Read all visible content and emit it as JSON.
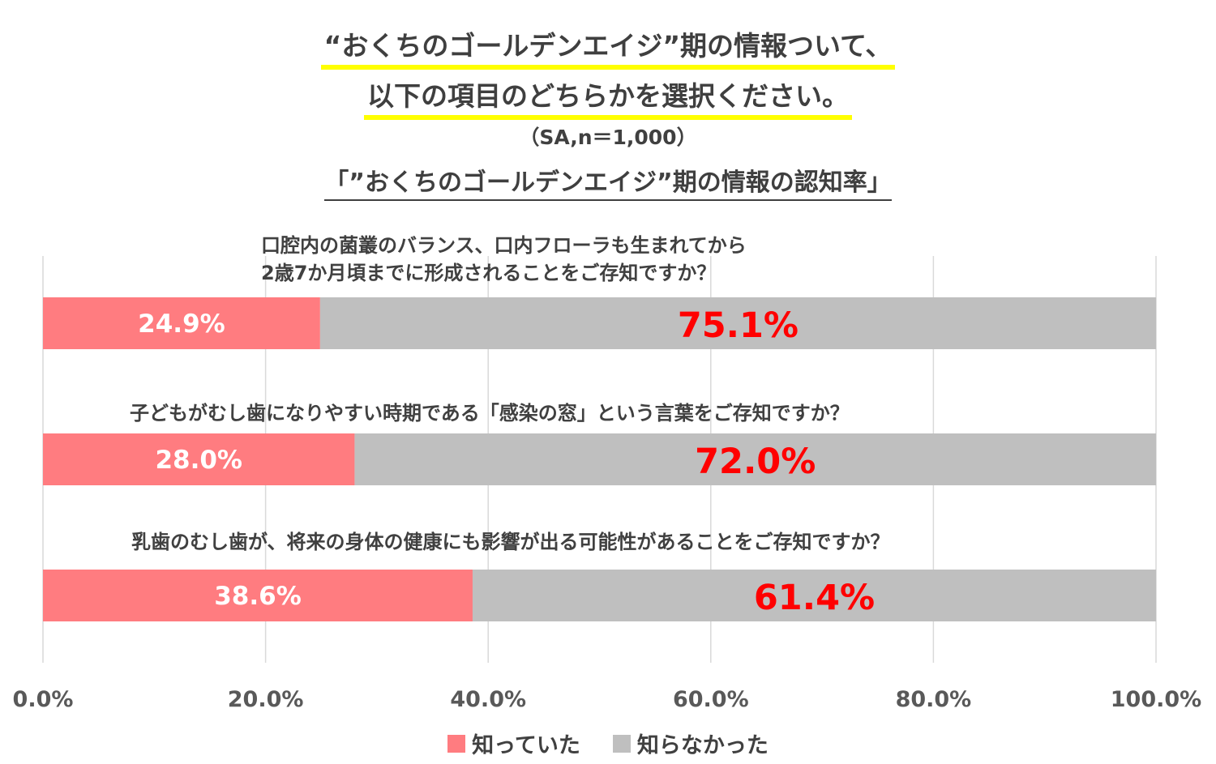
{
  "header": {
    "title_line1": "“おくちのゴールデンエイジ”期の情報ついて、",
    "title_line2": "以下の項目のどちらかを選択ください。",
    "sample_note": "（SA,n＝1,000）",
    "chart_title": "「”おくちのゴールデンエイジ”期の情報の認知率」"
  },
  "questions": [
    {
      "line1": "口腔内の菌叢のバランス、口内フローラも生まれてから",
      "line2": "2歳7か月頃までに形成されることをご存知ですか？"
    },
    {
      "line1": "子どもがむし歯になりやすい時期である「感染の窓」という言葉をご存知ですか？"
    },
    {
      "line1": "乳歯のむし歯が、将来の身体の健康にも影響が出る可能性があることをご存知ですか？"
    }
  ],
  "colors": {
    "known": "#ff7c80",
    "unknown": "#bfbfbf",
    "unknown_label": "#ff0000",
    "known_label": "#ffffff"
  },
  "chart_data": {
    "type": "bar",
    "orientation": "horizontal",
    "stacked": true,
    "categories": [
      "Q1",
      "Q2",
      "Q3"
    ],
    "series": [
      {
        "name": "知っていた",
        "values": [
          24.9,
          28.0,
          38.6
        ],
        "labels": [
          "24.9%",
          "28.0%",
          "38.6%"
        ]
      },
      {
        "name": "知らなかった",
        "values": [
          75.1,
          72.0,
          61.4
        ],
        "labels": [
          "75.1%",
          "72.0%",
          "61.4%"
        ]
      }
    ],
    "xlim": [
      0,
      100
    ],
    "xticks": [
      "0.0%",
      "20.0%",
      "40.0%",
      "60.0%",
      "80.0%",
      "100.0%"
    ],
    "grid": true,
    "legend_position": "bottom"
  }
}
